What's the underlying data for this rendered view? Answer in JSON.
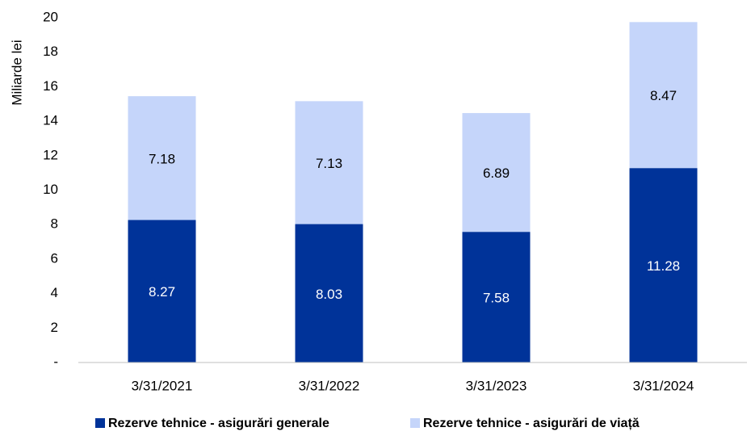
{
  "chart_data": {
    "type": "bar",
    "stacked": true,
    "y_label": "Miliarde lei",
    "categories": [
      "3/31/2021",
      "3/31/2022",
      "3/31/2023",
      "3/31/2024"
    ],
    "series": [
      {
        "name": "Rezerve tehnice - asigurări generale",
        "color": "#003399",
        "values": [
          8.27,
          8.03,
          7.58,
          11.28
        ]
      },
      {
        "name": "Rezerve tehnice - asigurări de viață",
        "color": "#c5d5fa",
        "values": [
          7.18,
          7.13,
          6.89,
          8.47
        ]
      }
    ],
    "ylim": [
      0,
      20
    ],
    "yticks": [
      {
        "value": 0,
        "label": "-"
      },
      2,
      4,
      6,
      8,
      10,
      12,
      14,
      16,
      18,
      20
    ],
    "grid": false,
    "legend": "bottom"
  }
}
